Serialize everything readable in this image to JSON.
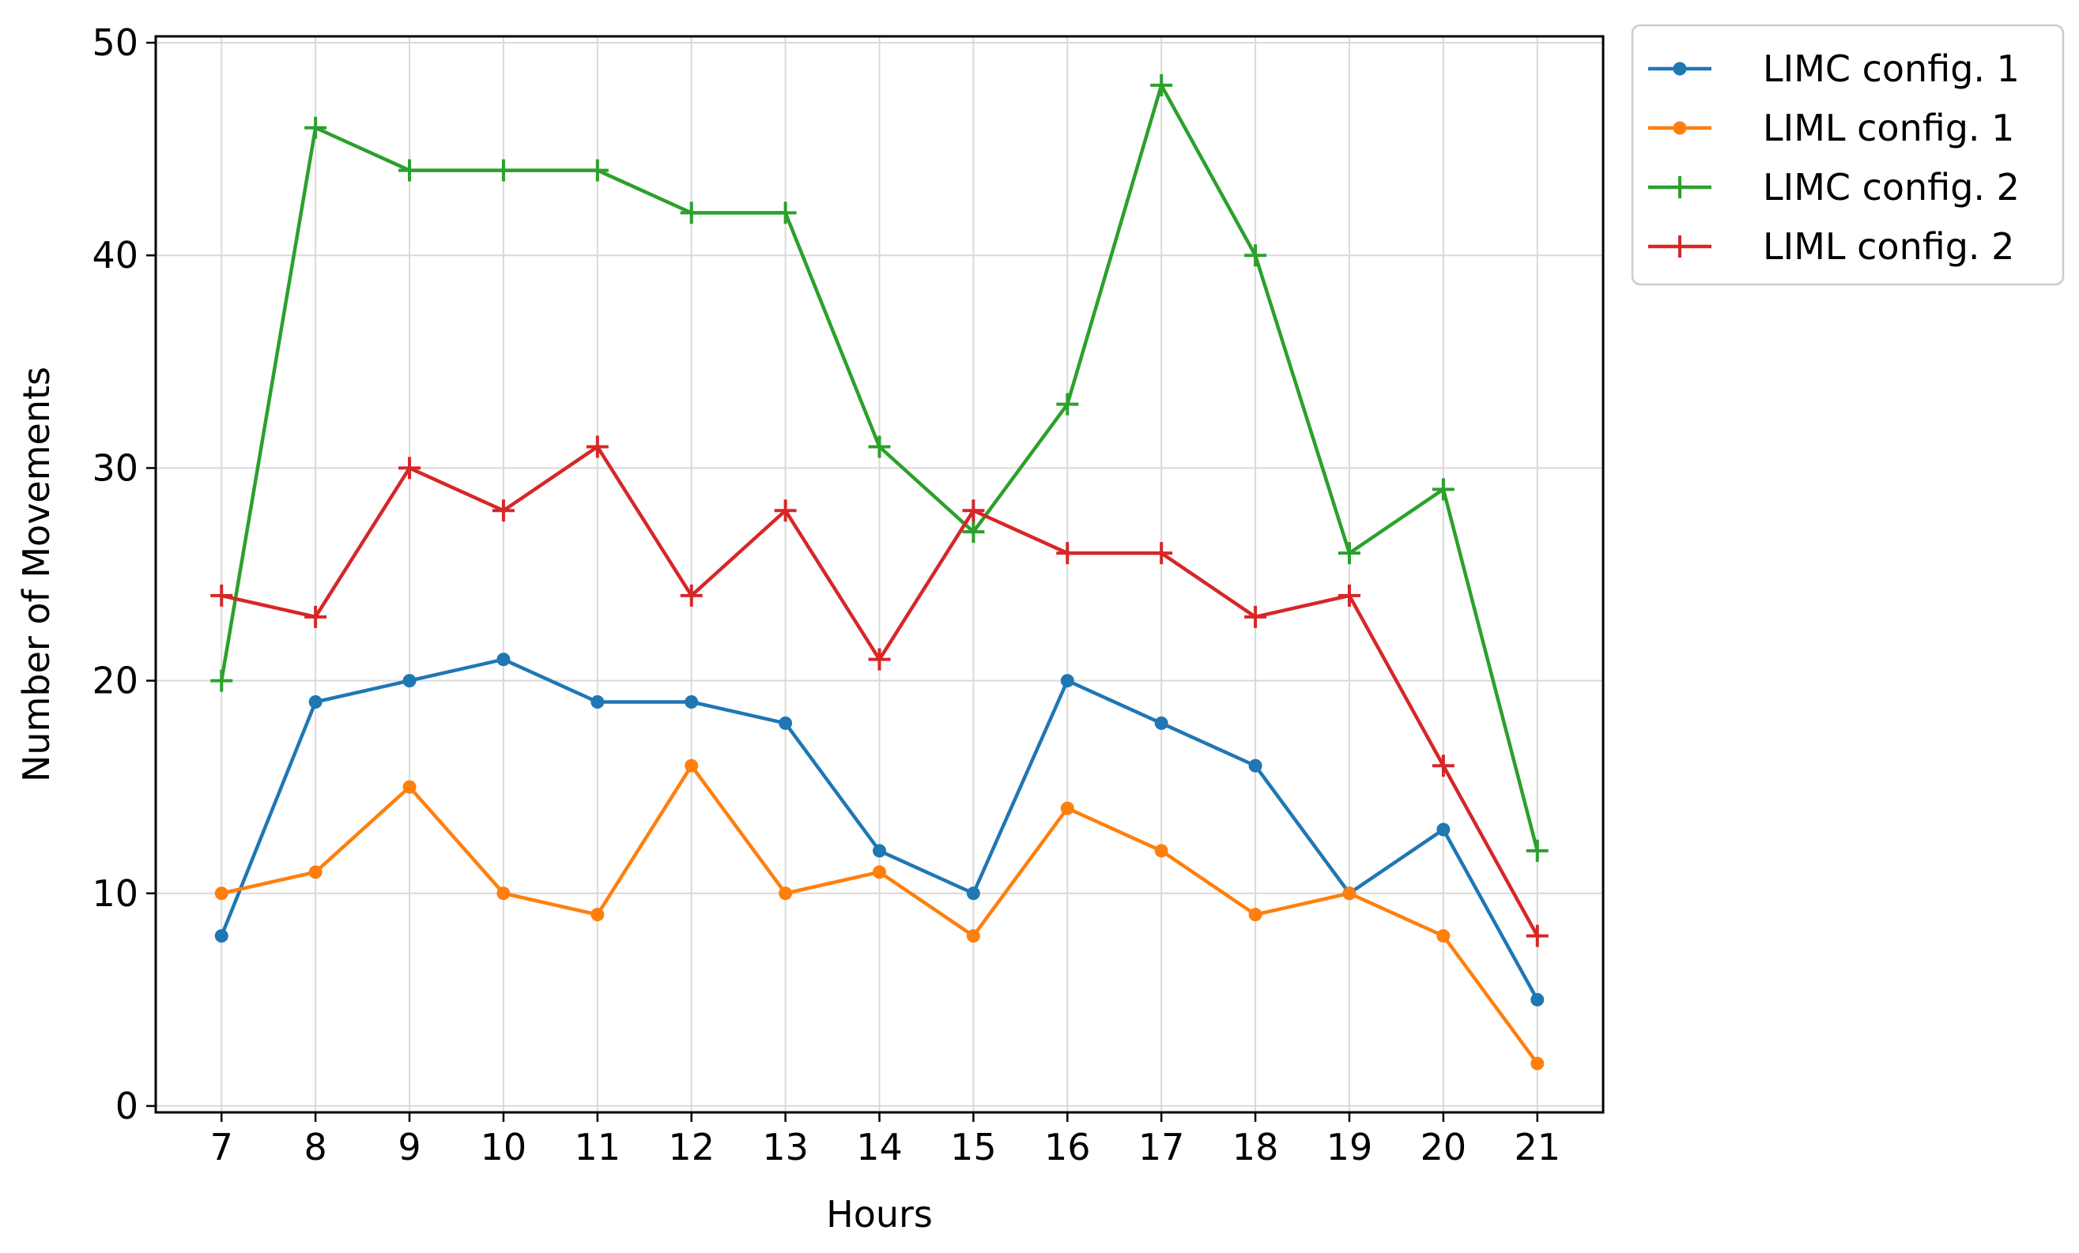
{
  "chart_data": {
    "type": "line",
    "title": "",
    "xlabel": "Hours",
    "ylabel": "Number of Movements",
    "x": [
      7,
      8,
      9,
      10,
      11,
      12,
      13,
      14,
      15,
      16,
      17,
      18,
      19,
      20,
      21
    ],
    "x_tick_labels": [
      "7",
      "8",
      "9",
      "10",
      "11",
      "12",
      "13",
      "14",
      "15",
      "16",
      "17",
      "18",
      "19",
      "20",
      "21"
    ],
    "xlim": [
      6.3,
      21.7
    ],
    "y_ticks": [
      0,
      10,
      20,
      30,
      40,
      50
    ],
    "y_tick_labels": [
      "0",
      "10",
      "20",
      "30",
      "40",
      "50"
    ],
    "ylim": [
      -0.3,
      50.3
    ],
    "grid": true,
    "legend_placement": "outside-top-right",
    "series": [
      {
        "name": "LIMC config. 1",
        "color": "#1f77b4",
        "marker": "dot",
        "values": [
          8,
          19,
          20,
          21,
          19,
          19,
          18,
          12,
          10,
          20,
          18,
          16,
          10,
          13,
          5
        ]
      },
      {
        "name": "LIML config. 1",
        "color": "#ff7f0e",
        "marker": "dot",
        "values": [
          10,
          11,
          15,
          10,
          9,
          16,
          10,
          11,
          8,
          14,
          12,
          9,
          10,
          8,
          2
        ]
      },
      {
        "name": "LIMC config. 2",
        "color": "#2ca02c",
        "marker": "plus",
        "values": [
          20,
          46,
          44,
          44,
          44,
          42,
          42,
          31,
          27,
          33,
          48,
          40,
          26,
          29,
          12
        ]
      },
      {
        "name": "LIML config. 2",
        "color": "#d62728",
        "marker": "plus",
        "values": [
          24,
          23,
          30,
          28,
          31,
          24,
          28,
          21,
          28,
          26,
          26,
          23,
          24,
          16,
          8
        ]
      }
    ]
  }
}
